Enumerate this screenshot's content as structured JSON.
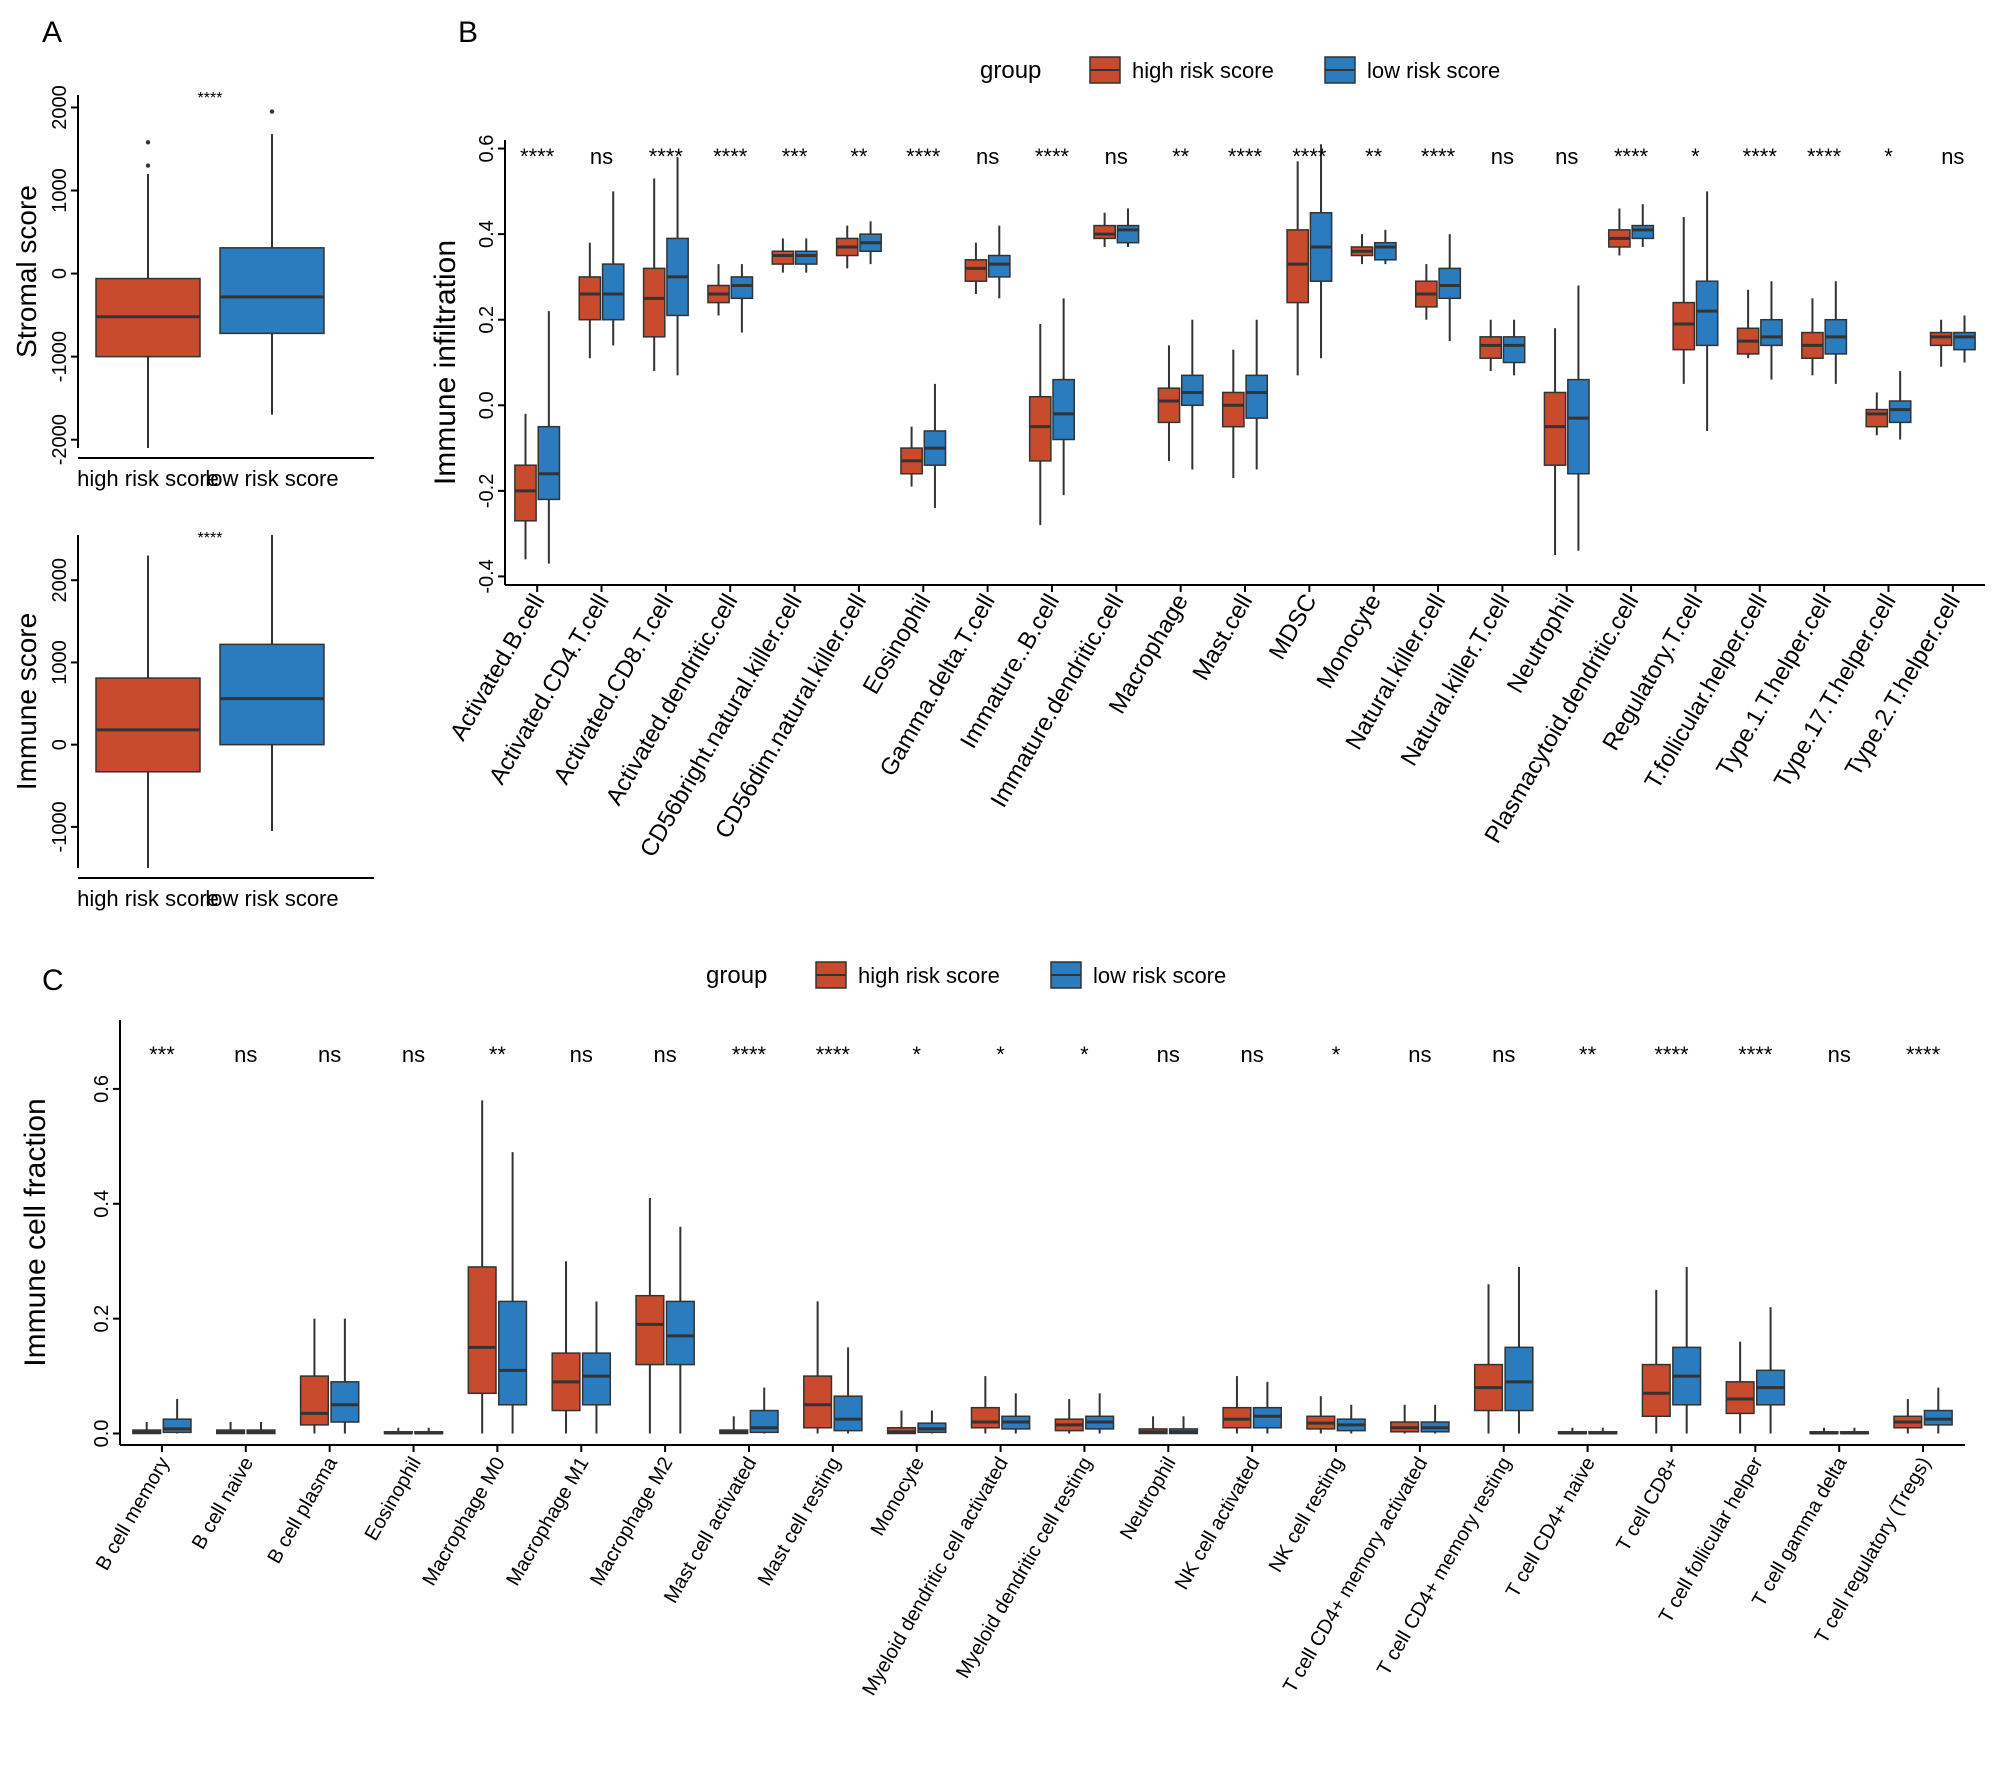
{
  "colors": {
    "high": "#c84b2d",
    "low": "#2b7bbf",
    "line": "#333333",
    "axis": "#000000"
  },
  "chart_data": [
    {
      "panel": "A",
      "type": "box",
      "ylabel": "Stromal score",
      "categories": [
        "high risk score",
        "low risk score"
      ],
      "yticks": [
        -2000,
        -1000,
        0,
        1000,
        2000
      ],
      "ylim": [
        -2100,
        2150
      ],
      "significance": "****",
      "boxes": [
        {
          "group": "high",
          "min": -2100,
          "q1": -1000,
          "median": -520,
          "q3": -60,
          "max": 1200,
          "outliers": [
            1300,
            1580
          ]
        },
        {
          "group": "low",
          "min": -1700,
          "q1": -720,
          "median": -280,
          "q3": 310,
          "max": 1680,
          "outliers": [
            1950
          ]
        }
      ]
    },
    {
      "panel": "A",
      "type": "box",
      "ylabel": "Immune score",
      "categories": [
        "high risk score",
        "low risk score"
      ],
      "yticks": [
        -1000,
        0,
        1000,
        2000
      ],
      "ylim": [
        -1500,
        2550
      ],
      "significance": "****",
      "boxes": [
        {
          "group": "high",
          "min": -1500,
          "q1": -330,
          "median": 180,
          "q3": 810,
          "max": 2300,
          "outliers": []
        },
        {
          "group": "low",
          "min": -1050,
          "q1": 0,
          "median": 560,
          "q3": 1220,
          "max": 2550,
          "outliers": []
        }
      ]
    },
    {
      "panel": "B",
      "type": "box",
      "ylabel": "Immune infiltration",
      "legend": {
        "title": "group",
        "items": [
          "high risk score",
          "low risk score"
        ]
      },
      "yticks": [
        -0.4,
        -0.2,
        0.0,
        0.2,
        0.4,
        0.6
      ],
      "ytick_labels": [
        "-0.4",
        "-0.2",
        "0.0",
        "0.2",
        "0.4",
        "0.6"
      ],
      "ylim": [
        -0.42,
        0.62
      ],
      "categories": [
        "Activated.B.cell",
        "Activated.CD4.T.cell",
        "Activated.CD8.T.cell",
        "Activated.dendritic.cell",
        "CD56bright.natural.killer.cell",
        "CD56dim.natural.killer.cell",
        "Eosinophil",
        "Gamma.delta.T.cell",
        "Immature..B.cell",
        "Immature.dendritic.cell",
        "Macrophage",
        "Mast.cell",
        "MDSC",
        "Monocyte",
        "Natural.killer.cell",
        "Natural.killer.T.cell",
        "Neutrophil",
        "Plasmacytoid.dendritic.cell",
        "Regulatory.T.cell",
        "T.follicular.helper.cell",
        "Type.1.T.helper.cell",
        "Type.17.T.helper.cell",
        "Type.2.T.helper.cell"
      ],
      "significance": [
        "****",
        "ns",
        "****",
        "****",
        "***",
        "**",
        "****",
        "ns",
        "****",
        "ns",
        "**",
        "****",
        "****",
        "**",
        "****",
        "ns",
        "ns",
        "****",
        "*",
        "****",
        "****",
        "*",
        "ns"
      ],
      "high": [
        [
          -0.36,
          -0.27,
          -0.2,
          -0.14,
          -0.02
        ],
        [
          0.11,
          0.2,
          0.26,
          0.3,
          0.38
        ],
        [
          0.08,
          0.16,
          0.25,
          0.32,
          0.53
        ],
        [
          0.21,
          0.24,
          0.26,
          0.28,
          0.33
        ],
        [
          0.31,
          0.33,
          0.35,
          0.36,
          0.39
        ],
        [
          0.32,
          0.35,
          0.37,
          0.39,
          0.42
        ],
        [
          -0.19,
          -0.16,
          -0.13,
          -0.1,
          -0.05
        ],
        [
          0.26,
          0.29,
          0.32,
          0.34,
          0.38
        ],
        [
          -0.28,
          -0.13,
          -0.05,
          0.02,
          0.19
        ],
        [
          0.37,
          0.39,
          0.4,
          0.42,
          0.45
        ],
        [
          -0.13,
          -0.04,
          0.01,
          0.04,
          0.14
        ],
        [
          -0.17,
          -0.05,
          0.0,
          0.03,
          0.13
        ],
        [
          0.07,
          0.24,
          0.33,
          0.41,
          0.57
        ],
        [
          0.33,
          0.35,
          0.36,
          0.37,
          0.4
        ],
        [
          0.2,
          0.23,
          0.26,
          0.29,
          0.33
        ],
        [
          0.08,
          0.11,
          0.14,
          0.16,
          0.2
        ],
        [
          -0.35,
          -0.14,
          -0.05,
          0.03,
          0.18
        ],
        [
          0.35,
          0.37,
          0.39,
          0.41,
          0.46
        ],
        [
          0.05,
          0.13,
          0.19,
          0.24,
          0.44
        ],
        [
          0.11,
          0.12,
          0.15,
          0.18,
          0.27
        ],
        [
          0.07,
          0.11,
          0.14,
          0.17,
          0.25
        ],
        [
          -0.07,
          -0.05,
          -0.02,
          -0.01,
          0.03
        ],
        [
          0.09,
          0.14,
          0.16,
          0.17,
          0.2
        ]
      ],
      "low": [
        [
          -0.37,
          -0.22,
          -0.16,
          -0.05,
          0.22
        ],
        [
          0.14,
          0.2,
          0.26,
          0.33,
          0.5
        ],
        [
          0.07,
          0.21,
          0.3,
          0.39,
          0.58
        ],
        [
          0.17,
          0.25,
          0.28,
          0.3,
          0.33
        ],
        [
          0.31,
          0.33,
          0.35,
          0.36,
          0.39
        ],
        [
          0.33,
          0.36,
          0.38,
          0.4,
          0.43
        ],
        [
          -0.24,
          -0.14,
          -0.1,
          -0.06,
          0.05
        ],
        [
          0.25,
          0.3,
          0.33,
          0.35,
          0.42
        ],
        [
          -0.21,
          -0.08,
          -0.02,
          0.06,
          0.25
        ],
        [
          0.37,
          0.38,
          0.41,
          0.42,
          0.46
        ],
        [
          -0.15,
          0.0,
          0.03,
          0.07,
          0.2
        ],
        [
          -0.15,
          -0.03,
          0.03,
          0.07,
          0.2
        ],
        [
          0.11,
          0.29,
          0.37,
          0.45,
          0.61
        ],
        [
          0.33,
          0.34,
          0.37,
          0.38,
          0.41
        ],
        [
          0.15,
          0.25,
          0.28,
          0.32,
          0.4
        ],
        [
          0.07,
          0.1,
          0.14,
          0.16,
          0.2
        ],
        [
          -0.34,
          -0.16,
          -0.03,
          0.06,
          0.28
        ],
        [
          0.37,
          0.39,
          0.41,
          0.42,
          0.47
        ],
        [
          -0.06,
          0.14,
          0.22,
          0.29,
          0.5
        ],
        [
          0.06,
          0.14,
          0.16,
          0.2,
          0.29
        ],
        [
          0.05,
          0.12,
          0.16,
          0.2,
          0.29
        ],
        [
          -0.08,
          -0.04,
          -0.01,
          0.01,
          0.08
        ],
        [
          0.1,
          0.13,
          0.16,
          0.17,
          0.21
        ]
      ]
    },
    {
      "panel": "C",
      "type": "box",
      "ylabel": "Immune cell fraction",
      "legend": {
        "title": "group",
        "items": [
          "high risk score",
          "low risk score"
        ]
      },
      "yticks": [
        0.0,
        0.2,
        0.4,
        0.6
      ],
      "ytick_labels": [
        "0.0",
        "0.2",
        "0.4",
        "0.6"
      ],
      "ylim": [
        -0.02,
        0.72
      ],
      "categories": [
        "B cell memory",
        "B cell naive",
        "B cell plasma",
        "Eosinophil",
        "Macrophage M0",
        "Macrophage M1",
        "Macrophage M2",
        "Mast cell activated",
        "Mast cell resting",
        "Monocyte",
        "Myeloid dendritic cell activated",
        "Myeloid dendritic cell resting",
        "Neutrophil",
        "NK cell activated",
        "NK cell resting",
        "T cell CD4+ memory activated",
        "T cell CD4+ memory resting",
        "T cell CD4+ naive",
        "T cell CD8+",
        "T cell follicular helper",
        "T cell gamma delta",
        "T cell regulatory (Tregs)"
      ],
      "significance": [
        "***",
        "ns",
        "ns",
        "ns",
        "**",
        "ns",
        "ns",
        "****",
        "****",
        "*",
        "*",
        "*",
        "ns",
        "ns",
        "*",
        "ns",
        "ns",
        "**",
        "****",
        "****",
        "ns",
        "****"
      ],
      "high": [
        [
          0,
          0,
          0.002,
          0.006,
          0.02
        ],
        [
          0,
          0,
          0.002,
          0.006,
          0.02
        ],
        [
          0,
          0.015,
          0.035,
          0.1,
          0.2
        ],
        [
          0,
          0,
          0.001,
          0.003,
          0.01
        ],
        [
          0,
          0.07,
          0.15,
          0.29,
          0.58
        ],
        [
          0,
          0.04,
          0.09,
          0.14,
          0.3
        ],
        [
          0,
          0.12,
          0.19,
          0.24,
          0.41
        ],
        [
          0,
          0,
          0.002,
          0.006,
          0.03
        ],
        [
          0,
          0.01,
          0.05,
          0.1,
          0.23
        ],
        [
          0,
          0,
          0.003,
          0.01,
          0.04
        ],
        [
          0,
          0.01,
          0.02,
          0.045,
          0.1
        ],
        [
          0,
          0.005,
          0.015,
          0.025,
          0.06
        ],
        [
          0,
          0,
          0.003,
          0.008,
          0.03
        ],
        [
          0,
          0.01,
          0.025,
          0.045,
          0.1
        ],
        [
          0,
          0.008,
          0.018,
          0.03,
          0.065
        ],
        [
          0,
          0.003,
          0.01,
          0.02,
          0.05
        ],
        [
          0,
          0.04,
          0.08,
          0.12,
          0.26
        ],
        [
          0,
          0,
          0.001,
          0.003,
          0.01
        ],
        [
          0,
          0.03,
          0.07,
          0.12,
          0.25
        ],
        [
          0,
          0.035,
          0.06,
          0.09,
          0.16
        ],
        [
          0,
          0,
          0.001,
          0.003,
          0.01
        ],
        [
          0,
          0.01,
          0.02,
          0.03,
          0.06
        ]
      ],
      "low": [
        [
          0,
          0.002,
          0.008,
          0.025,
          0.06
        ],
        [
          0,
          0,
          0.002,
          0.006,
          0.02
        ],
        [
          0,
          0.02,
          0.05,
          0.09,
          0.2
        ],
        [
          0,
          0,
          0.001,
          0.003,
          0.01
        ],
        [
          0,
          0.05,
          0.11,
          0.23,
          0.49
        ],
        [
          0,
          0.05,
          0.1,
          0.14,
          0.23
        ],
        [
          0,
          0.12,
          0.17,
          0.23,
          0.36
        ],
        [
          0,
          0.002,
          0.01,
          0.04,
          0.08
        ],
        [
          0,
          0.005,
          0.025,
          0.065,
          0.15
        ],
        [
          0,
          0.002,
          0.008,
          0.018,
          0.04
        ],
        [
          0,
          0.008,
          0.02,
          0.03,
          0.07
        ],
        [
          0,
          0.008,
          0.02,
          0.03,
          0.07
        ],
        [
          0,
          0,
          0.003,
          0.008,
          0.03
        ],
        [
          0,
          0.01,
          0.03,
          0.045,
          0.09
        ],
        [
          0,
          0.005,
          0.015,
          0.025,
          0.05
        ],
        [
          0,
          0.003,
          0.01,
          0.02,
          0.05
        ],
        [
          0,
          0.04,
          0.09,
          0.15,
          0.29
        ],
        [
          0,
          0,
          0.001,
          0.003,
          0.01
        ],
        [
          0,
          0.05,
          0.1,
          0.15,
          0.29
        ],
        [
          0,
          0.05,
          0.08,
          0.11,
          0.22
        ],
        [
          0,
          0,
          0.001,
          0.003,
          0.01
        ],
        [
          0,
          0.015,
          0.025,
          0.04,
          0.08
        ]
      ]
    }
  ],
  "labels": {
    "A": "A",
    "B": "B",
    "C": "C"
  }
}
